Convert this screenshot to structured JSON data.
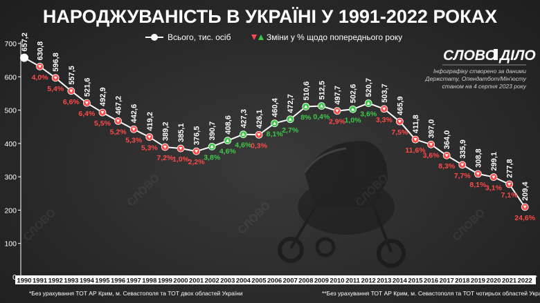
{
  "chart_data": {
    "type": "line",
    "title": "НАРОДЖУВАНІСТЬ В УКРАЇНІ У 1991-2022 РОКАХ",
    "x": [
      "1990",
      "1991",
      "1992",
      "1993",
      "1994",
      "1995",
      "1996",
      "1997",
      "1998",
      "1999",
      "2000",
      "2001",
      "2002",
      "2003",
      "2004",
      "2005",
      "2006",
      "2007",
      "2008",
      "2009",
      "2010",
      "2011",
      "2012",
      "2013",
      "2014",
      "2015",
      "2016",
      "2017",
      "2018",
      "2019",
      "2020",
      "2021",
      "2022"
    ],
    "series": [
      {
        "name": "Всього, тис. осіб",
        "values": [
          657.2,
          630.8,
          596.8,
          557.5,
          521.6,
          492.9,
          467.2,
          442.6,
          419.2,
          389.2,
          385.1,
          376.5,
          390.7,
          408.6,
          427.3,
          426.1,
          460.4,
          472.7,
          510.6,
          512.5,
          497.7,
          502.6,
          520.7,
          503.7,
          465.9,
          411.8,
          397.0,
          364.0,
          335.9,
          308.8,
          299.1,
          277.8,
          209.4
        ],
        "labels": [
          "657,2",
          "630,8",
          "596,8",
          "557,5",
          "521,6",
          "492,9",
          "467,2",
          "442,6",
          "419,2",
          "389,2",
          "385,1",
          "376,5",
          "390,7",
          "408,6",
          "427,3",
          "426,1",
          "460,4",
          "472,7",
          "510,6",
          "512,5",
          "497,7",
          "502,6",
          "520,7",
          "503,7",
          "465,9",
          "411,8",
          "397,0",
          "364,0",
          "335,9",
          "308,8",
          "299,1",
          "277,8",
          "209,4"
        ]
      },
      {
        "name": "Зміни у % щодо попереднього року",
        "values": [
          "",
          "4,0",
          "5,4",
          "6,6",
          "6,4",
          "5,5",
          "5,2",
          "5,3",
          "5,3",
          "7,2",
          "1,0",
          "2,2",
          "3,8",
          "4,6",
          "4,6",
          "0,3",
          "8,1",
          "2,7",
          "8",
          "0,4",
          "2,9",
          "1,0",
          "3,6",
          "3,3",
          "7,5",
          "11,6",
          "3,6",
          "8,3",
          "7,7",
          "8,1",
          "3,1",
          "7,1",
          "24,6"
        ],
        "direction": [
          "",
          "down",
          "down",
          "down",
          "down",
          "down",
          "down",
          "down",
          "down",
          "down",
          "down",
          "down",
          "up",
          "up",
          "up",
          "down",
          "up",
          "up",
          "up",
          "up",
          "down",
          "up",
          "up",
          "down",
          "down",
          "down",
          "down",
          "down",
          "down",
          "down",
          "down",
          "down",
          "down"
        ]
      }
    ],
    "ylim": [
      0,
      700
    ],
    "yticks": [
      "0",
      "100",
      "200",
      "300",
      "400",
      "500",
      "600",
      "700"
    ],
    "xlabel": "",
    "ylabel": "",
    "legend_position": "top-center",
    "grid": false,
    "colors": {
      "line": "#ffffff",
      "up": "#3ec94a",
      "down": "#ff4a4a",
      "axis_band": "#ffffff"
    }
  },
  "legend": {
    "total_label": "Всього, тис. осіб",
    "change_label": "Зміни у % щодо попереднього року"
  },
  "logo": {
    "text": "СЛОВО",
    "text_right": "ДІЛО",
    "source_lines": [
      "Інфографіку створено за даними",
      "Держстату, Опендатбот/Мін'юсту",
      "станом на 4 серпня 2023 року"
    ]
  },
  "footnotes": {
    "left": "*Без урахування ТОТ АР Крим, м. Севастополя та ТОТ двох областей України",
    "right": "**Без урахування ТОТ АР Крим, м. Севастополя та ТОТ чотирьох областей України",
    "mark_2014": "*",
    "mark_2022": "**"
  }
}
